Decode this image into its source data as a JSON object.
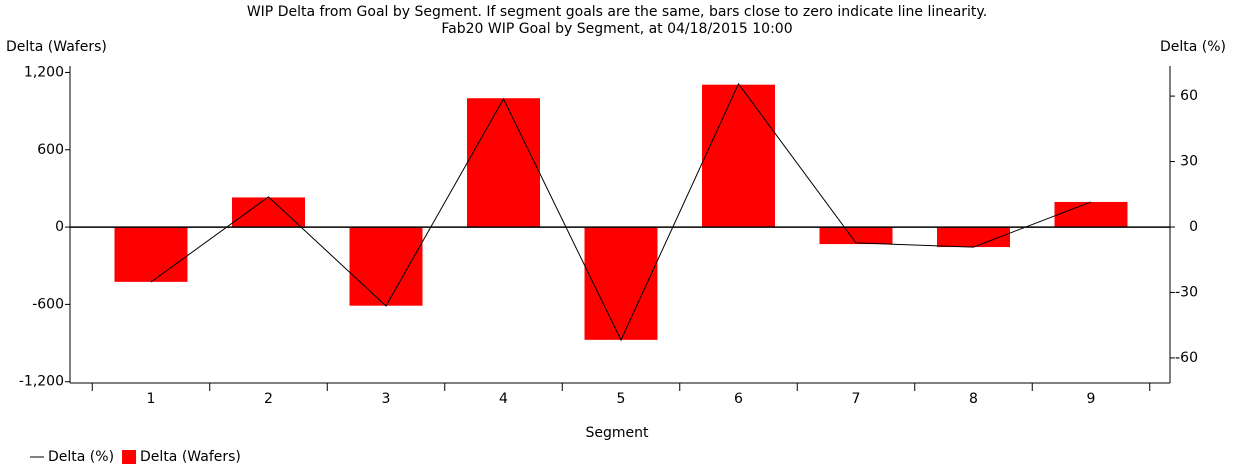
{
  "chart_data": {
    "type": "bar",
    "title": "WIP Delta from Goal by Segment. If segment goals are the same, bars close to zero indicate line linearity.",
    "subtitle": "Fab20 WIP Goal by Segment, at 04/18/2015 10:00",
    "x_label": "Segment",
    "y_label": "Delta (Wafers)",
    "y2_label": "Delta (%)",
    "categories": [
      "1",
      "2",
      "3",
      "4",
      "5",
      "6",
      "7",
      "8",
      "9"
    ],
    "series": [
      {
        "name": "Delta (%)",
        "type": "line",
        "axis": "y2",
        "color": "#000000",
        "values": [
          -25.2,
          13.8,
          -36.2,
          58.7,
          -51.8,
          65.6,
          -7.3,
          -9.2,
          11.5
        ]
      },
      {
        "name": "Delta (Wafers)",
        "type": "bar",
        "axis": "y",
        "color": "#ff0000",
        "values": [
          -425,
          230,
          -610,
          1000,
          -875,
          1105,
          -132,
          -155,
          195
        ]
      }
    ],
    "ylim": [
      -1210,
      1250
    ],
    "yticks": [
      {
        "value": -1200,
        "label": "-1,200"
      },
      -600,
      0,
      600,
      {
        "value": 1200,
        "label": "1,200"
      }
    ],
    "y2lim": [
      -71.5,
      73.8
    ],
    "y2ticks": [
      -60,
      -30,
      0,
      30,
      60
    ],
    "grid": false,
    "legend": "bottom-left"
  }
}
